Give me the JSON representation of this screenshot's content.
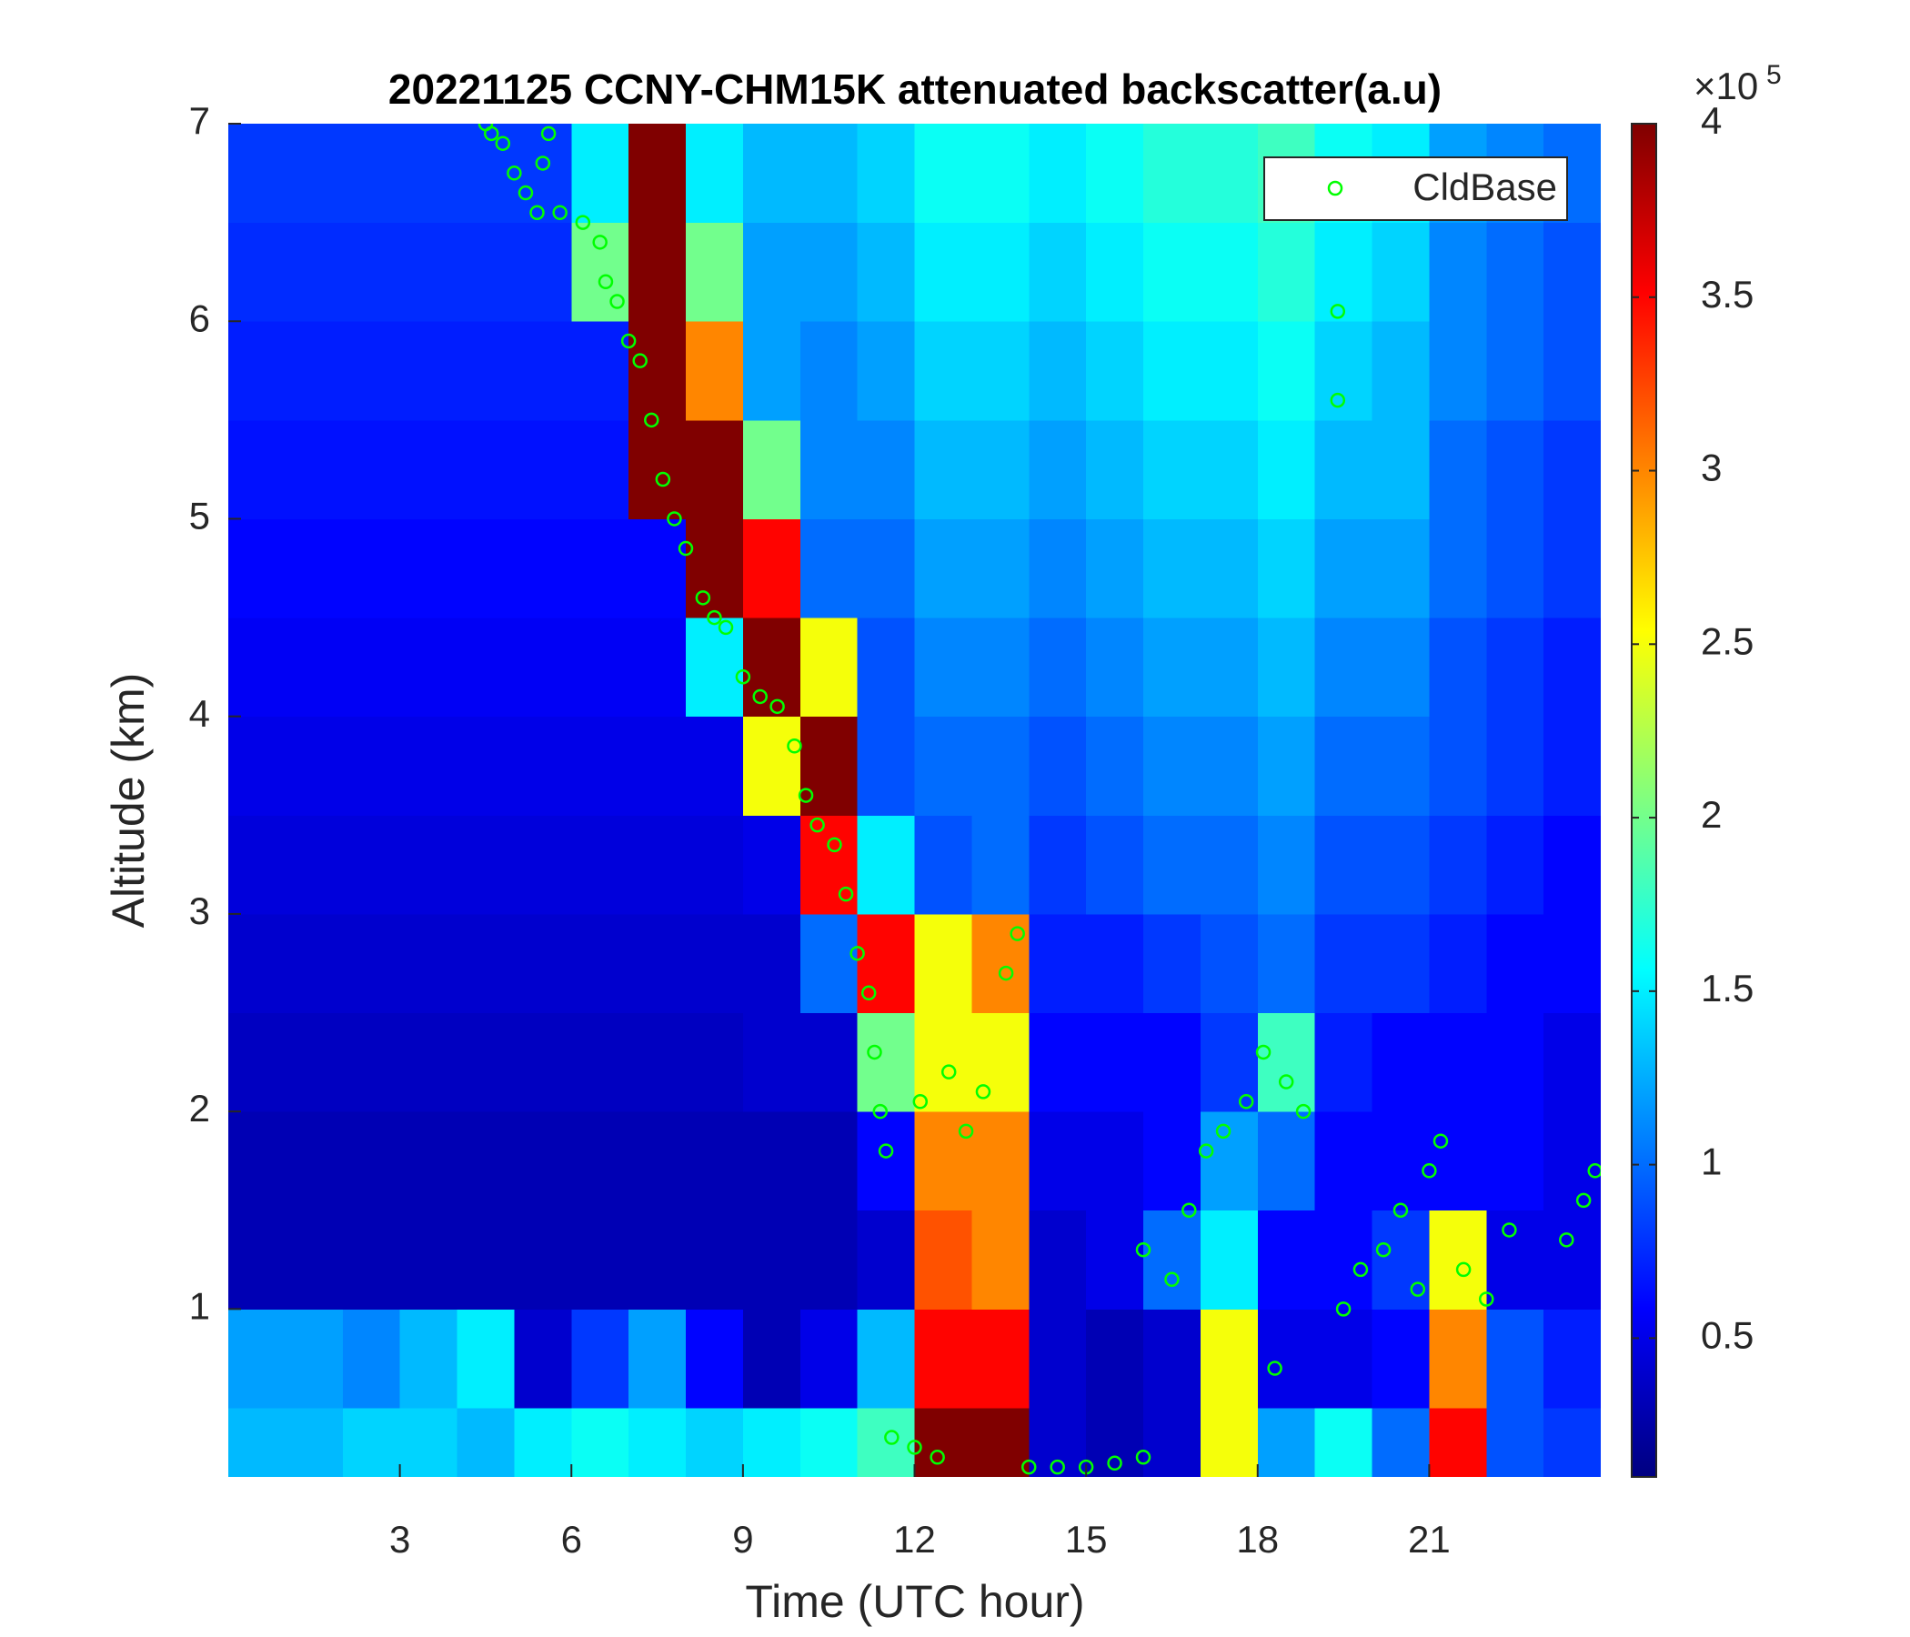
{
  "chart_data": {
    "type": "heatmap",
    "title": "20221125 CCNY-CHM15K attenuated backscatter(a.u)",
    "xlabel": "Time (UTC hour)",
    "ylabel": "Altitude (km)",
    "xlim": [
      0,
      24
    ],
    "xticks": [
      3,
      6,
      9,
      12,
      15,
      18,
      21
    ],
    "ylim": [
      0.15,
      7
    ],
    "yticks": [
      1,
      2,
      3,
      4,
      5,
      6,
      7
    ],
    "colormap": "jet",
    "zlim": [
      0.1,
      4
    ],
    "zticks": [
      0.5,
      1,
      1.5,
      2,
      2.5,
      3,
      3.5,
      4
    ],
    "colorbar_multiplier": "×10",
    "colorbar_exponent": "5",
    "x_bins": [
      0,
      1,
      2,
      3,
      4,
      5,
      6,
      7,
      8,
      9,
      10,
      11,
      12,
      13,
      14,
      15,
      16,
      17,
      18,
      19,
      20,
      21,
      22,
      23,
      24
    ],
    "y_bins": [
      0.15,
      0.5,
      1,
      1.5,
      2,
      2.5,
      3,
      3.5,
      4,
      4.5,
      5,
      5.5,
      6,
      6.5,
      7
    ],
    "z": [
      [
        1.3,
        1.3,
        1.4,
        1.4,
        1.3,
        1.5,
        1.6,
        1.5,
        1.4,
        1.5,
        1.6,
        1.8,
        4,
        4,
        0.4,
        0.3,
        0.4,
        2.5,
        1.2,
        1.6,
        1.0,
        3.5,
        0.9,
        0.8
      ],
      [
        1.2,
        1.2,
        1.1,
        1.3,
        1.5,
        0.4,
        0.8,
        1.2,
        0.6,
        0.3,
        0.5,
        1.3,
        3.5,
        3.5,
        0.4,
        0.3,
        0.4,
        2.5,
        0.5,
        0.5,
        0.6,
        3,
        0.9,
        0.7
      ],
      [
        0.3,
        0.3,
        0.3,
        0.3,
        0.3,
        0.3,
        0.3,
        0.3,
        0.3,
        0.3,
        0.3,
        0.4,
        3.2,
        3.0,
        0.4,
        0.5,
        1.0,
        1.5,
        0.6,
        0.6,
        0.8,
        2.5,
        0.5,
        0.5
      ],
      [
        0.3,
        0.3,
        0.3,
        0.3,
        0.3,
        0.3,
        0.3,
        0.3,
        0.3,
        0.3,
        0.3,
        0.6,
        3.0,
        3.0,
        0.5,
        0.5,
        0.6,
        1.2,
        1.0,
        0.6,
        0.6,
        0.6,
        0.6,
        0.5
      ],
      [
        0.35,
        0.35,
        0.35,
        0.35,
        0.35,
        0.35,
        0.35,
        0.35,
        0.35,
        0.4,
        0.4,
        2.0,
        2.5,
        2.5,
        0.6,
        0.6,
        0.6,
        0.8,
        1.8,
        0.7,
        0.6,
        0.6,
        0.6,
        0.5
      ],
      [
        0.4,
        0.4,
        0.4,
        0.4,
        0.4,
        0.4,
        0.4,
        0.4,
        0.4,
        0.4,
        1.0,
        3.5,
        2.5,
        3.0,
        0.7,
        0.7,
        0.8,
        0.9,
        1.0,
        0.8,
        0.8,
        0.7,
        0.6,
        0.6
      ],
      [
        0.45,
        0.45,
        0.45,
        0.45,
        0.45,
        0.45,
        0.45,
        0.45,
        0.45,
        0.5,
        3.5,
        1.5,
        0.9,
        1.0,
        0.8,
        0.9,
        1.0,
        1.0,
        1.1,
        0.9,
        0.9,
        0.8,
        0.7,
        0.6
      ],
      [
        0.5,
        0.5,
        0.5,
        0.5,
        0.5,
        0.5,
        0.5,
        0.5,
        0.5,
        2.5,
        4,
        0.9,
        1.0,
        1.0,
        0.9,
        1.0,
        1.1,
        1.1,
        1.2,
        1.0,
        1.0,
        0.9,
        0.8,
        0.7
      ],
      [
        0.55,
        0.55,
        0.55,
        0.55,
        0.55,
        0.55,
        0.55,
        0.55,
        1.5,
        4,
        2.5,
        0.9,
        1.1,
        1.1,
        1.0,
        1.1,
        1.2,
        1.2,
        1.3,
        1.1,
        1.1,
        0.9,
        0.8,
        0.7
      ],
      [
        0.6,
        0.6,
        0.6,
        0.6,
        0.6,
        0.6,
        0.6,
        0.6,
        4,
        3.5,
        1.0,
        1.0,
        1.2,
        1.2,
        1.1,
        1.2,
        1.3,
        1.3,
        1.4,
        1.2,
        1.2,
        1.0,
        0.9,
        0.8
      ],
      [
        0.65,
        0.65,
        0.65,
        0.65,
        0.65,
        0.65,
        0.65,
        4,
        4,
        2,
        1.1,
        1.1,
        1.3,
        1.3,
        1.2,
        1.3,
        1.4,
        1.4,
        1.5,
        1.3,
        1.3,
        1.0,
        0.9,
        0.8
      ],
      [
        0.7,
        0.7,
        0.7,
        0.7,
        0.7,
        0.7,
        0.7,
        4,
        3,
        1.2,
        1.1,
        1.2,
        1.4,
        1.4,
        1.3,
        1.4,
        1.5,
        1.5,
        1.6,
        1.4,
        1.3,
        1.1,
        1.0,
        0.9
      ],
      [
        0.75,
        0.75,
        0.75,
        0.75,
        0.75,
        0.75,
        2,
        4,
        2,
        1.2,
        1.2,
        1.3,
        1.5,
        1.5,
        1.4,
        1.5,
        1.6,
        1.6,
        1.7,
        1.5,
        1.4,
        1.1,
        1.0,
        0.9
      ],
      [
        0.8,
        0.8,
        0.8,
        0.8,
        0.8,
        0.8,
        1.5,
        4,
        1.5,
        1.3,
        1.3,
        1.4,
        1.6,
        1.6,
        1.5,
        1.6,
        1.7,
        1.7,
        1.8,
        1.6,
        1.5,
        1.2,
        1.1,
        1.0
      ]
    ],
    "overlay": {
      "type": "scatter",
      "name": "CldBase",
      "color": "#00ff00",
      "x": [
        4.5,
        4.6,
        4.8,
        5.0,
        5.2,
        5.5,
        5.6,
        5.4,
        5.8,
        6.2,
        6.5,
        6.6,
        6.8,
        7.0,
        7.2,
        7.4,
        7.6,
        7.8,
        8.0,
        8.3,
        8.5,
        8.7,
        9.0,
        9.3,
        9.6,
        9.9,
        10.1,
        10.3,
        10.6,
        10.8,
        11.0,
        11.2,
        11.3,
        11.4,
        11.5,
        11.6,
        12.0,
        12.4,
        12.1,
        12.6,
        12.9,
        13.2,
        13.6,
        13.8,
        14.0,
        14.5,
        15.0,
        15.5,
        16.0,
        16.0,
        16.5,
        16.8,
        17.1,
        17.4,
        17.8,
        18.1,
        18.5,
        18.8,
        18.3,
        19.4,
        19.4,
        19.5,
        19.8,
        20.2,
        20.5,
        20.8,
        21.0,
        21.2,
        21.6,
        22.0,
        22.4,
        23.4,
        23.7,
        23.9
      ],
      "y": [
        7.0,
        6.95,
        6.9,
        6.75,
        6.65,
        6.8,
        6.95,
        6.55,
        6.55,
        6.5,
        6.4,
        6.2,
        6.1,
        5.9,
        5.8,
        5.5,
        5.2,
        5.0,
        4.85,
        4.6,
        4.5,
        4.45,
        4.2,
        4.1,
        4.05,
        3.85,
        3.6,
        3.45,
        3.35,
        3.1,
        2.8,
        2.6,
        2.3,
        2.0,
        1.8,
        0.35,
        0.3,
        0.25,
        2.05,
        2.2,
        1.9,
        2.1,
        2.7,
        2.9,
        0.2,
        0.2,
        0.2,
        0.22,
        0.25,
        1.3,
        1.15,
        1.5,
        1.8,
        1.9,
        2.05,
        2.3,
        2.15,
        2.0,
        0.7,
        6.05,
        5.6,
        1.0,
        1.2,
        1.3,
        1.5,
        1.1,
        1.7,
        1.85,
        1.2,
        1.05,
        1.4,
        1.35,
        1.55,
        1.7
      ]
    },
    "legend": "upper right"
  }
}
